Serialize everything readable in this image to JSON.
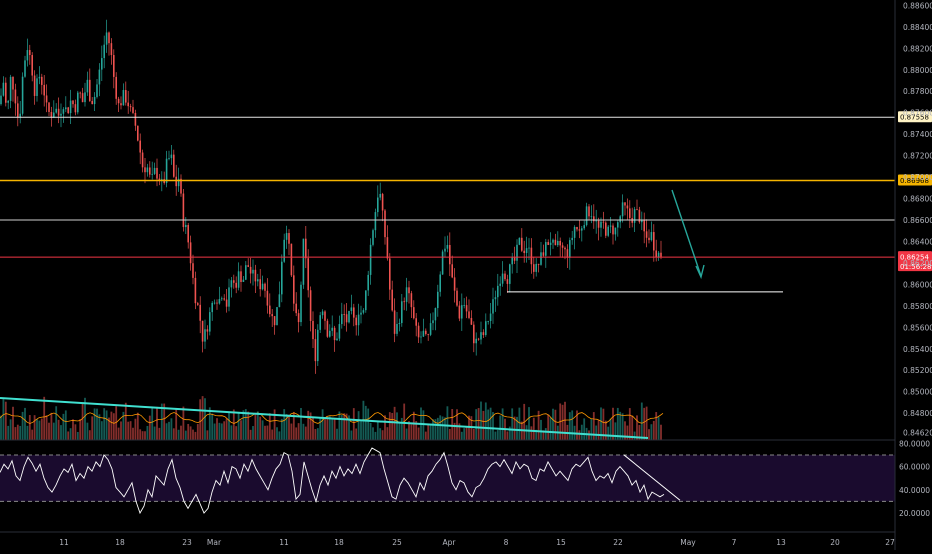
{
  "chart_data": {
    "type": "candlestick",
    "symbol_hidden": true,
    "price_axis": {
      "ylim": [
        0.8455,
        0.8865
      ],
      "ticks": [
        "0.88600",
        "0.88400",
        "0.88200",
        "0.88000",
        "0.87800",
        "0.87600",
        "0.87400",
        "0.87200",
        "0.87000",
        "0.86800",
        "0.86600",
        "0.86400",
        "0.86200",
        "0.86000",
        "0.85800",
        "0.85600",
        "0.85400",
        "0.85200",
        "0.85000",
        "0.84800",
        "0.84620"
      ]
    },
    "time_axis": {
      "labels": [
        "11",
        "18",
        "23",
        "Mar",
        "11",
        "18",
        "25",
        "Apr",
        "8",
        "15",
        "22",
        "May",
        "7",
        "13",
        "20",
        "27"
      ]
    },
    "horizontal_levels": [
      {
        "price": 0.87558,
        "label": "0.87558",
        "color": "#e6e6e6",
        "badge_bg": "#fff3c4",
        "badge_fg": "#000000"
      },
      {
        "price": 0.86968,
        "label": "0.86968",
        "color": "#f5b400",
        "badge_bg": "#f5b400",
        "badge_fg": "#000000"
      },
      {
        "price": 0.866,
        "label": "",
        "color": "#d0d0d0"
      },
      {
        "price": 0.86254,
        "label": "0.86254",
        "sublabel": "01:56:28",
        "color": "#f23645",
        "badge_bg": "#f23645",
        "badge_fg": "#ffffff"
      }
    ],
    "support_segment_price": 0.8593,
    "bull_color": "#26a69a",
    "bear_color": "#ef5350",
    "arrow_color": "#26a69a",
    "trendline_color": "#40e0d0",
    "rsi": {
      "ylim": [
        14,
        82
      ],
      "ticks": [
        "80.0000",
        "60.0000",
        "40.0000",
        "20.0000"
      ],
      "upper_band": 70,
      "lower_band": 30,
      "line_color": "#ffffff",
      "band_fill": "#1a0b2e"
    },
    "price_path": [
      [
        0,
        0.8768
      ],
      [
        3,
        0.8792
      ],
      [
        7,
        0.8758
      ],
      [
        11,
        0.8795
      ],
      [
        15,
        0.8776
      ],
      [
        19,
        0.8748
      ],
      [
        23,
        0.8798
      ],
      [
        27,
        0.8823
      ],
      [
        31,
        0.8808
      ],
      [
        35,
        0.8778
      ],
      [
        39,
        0.8795
      ],
      [
        43,
        0.8786
      ],
      [
        47,
        0.8762
      ],
      [
        51,
        0.8758
      ],
      [
        55,
        0.8765
      ],
      [
        59,
        0.8757
      ],
      [
        63,
        0.877
      ],
      [
        67,
        0.876
      ],
      [
        71,
        0.8772
      ],
      [
        75,
        0.8764
      ],
      [
        79,
        0.878
      ],
      [
        83,
        0.8769
      ],
      [
        87,
        0.879
      ],
      [
        91,
        0.877
      ],
      [
        95,
        0.8776
      ],
      [
        99,
        0.8796
      ],
      [
        103,
        0.8818
      ],
      [
        107,
        0.8836
      ],
      [
        111,
        0.8815
      ],
      [
        115,
        0.8784
      ],
      [
        119,
        0.8765
      ],
      [
        123,
        0.8776
      ],
      [
        127,
        0.8772
      ],
      [
        131,
        0.876
      ],
      [
        135,
        0.875
      ],
      [
        139,
        0.873
      ],
      [
        143,
        0.8708
      ],
      [
        147,
        0.871
      ],
      [
        151,
        0.8695
      ],
      [
        155,
        0.8706
      ],
      [
        159,
        0.87
      ],
      [
        163,
        0.869
      ],
      [
        167,
        0.8714
      ],
      [
        171,
        0.872
      ],
      [
        175,
        0.869
      ],
      [
        179,
        0.87
      ],
      [
        183,
        0.866
      ],
      [
        187,
        0.8648
      ],
      [
        191,
        0.862
      ],
      [
        195,
        0.859
      ],
      [
        199,
        0.8575
      ],
      [
        203,
        0.8548
      ],
      [
        207,
        0.856
      ],
      [
        211,
        0.8578
      ],
      [
        215,
        0.859
      ],
      [
        219,
        0.8585
      ],
      [
        223,
        0.8595
      ],
      [
        227,
        0.858
      ],
      [
        231,
        0.8605
      ],
      [
        235,
        0.8598
      ],
      [
        239,
        0.861
      ],
      [
        243,
        0.8604
      ],
      [
        247,
        0.862
      ],
      [
        251,
        0.861
      ],
      [
        255,
        0.8606
      ],
      [
        259,
        0.8598
      ],
      [
        263,
        0.8603
      ],
      [
        267,
        0.8588
      ],
      [
        271,
        0.857
      ],
      [
        275,
        0.8566
      ],
      [
        279,
        0.8588
      ],
      [
        283,
        0.864
      ],
      [
        287,
        0.8655
      ],
      [
        291,
        0.861
      ],
      [
        295,
        0.857
      ],
      [
        299,
        0.8562
      ],
      [
        303,
        0.864
      ],
      [
        307,
        0.8612
      ],
      [
        311,
        0.856
      ],
      [
        315,
        0.853
      ],
      [
        319,
        0.857
      ],
      [
        323,
        0.858
      ],
      [
        327,
        0.8556
      ],
      [
        331,
        0.856
      ],
      [
        335,
        0.8545
      ],
      [
        339,
        0.856
      ],
      [
        343,
        0.8574
      ],
      [
        347,
        0.8565
      ],
      [
        351,
        0.8574
      ],
      [
        355,
        0.8562
      ],
      [
        359,
        0.8578
      ],
      [
        363,
        0.857
      ],
      [
        367,
        0.8602
      ],
      [
        371,
        0.864
      ],
      [
        375,
        0.8666
      ],
      [
        379,
        0.8692
      ],
      [
        383,
        0.866
      ],
      [
        387,
        0.863
      ],
      [
        391,
        0.858
      ],
      [
        395,
        0.8554
      ],
      [
        399,
        0.8568
      ],
      [
        403,
        0.8585
      ],
      [
        407,
        0.8595
      ],
      [
        411,
        0.858
      ],
      [
        415,
        0.856
      ],
      [
        419,
        0.8548
      ],
      [
        423,
        0.8555
      ],
      [
        427,
        0.8545
      ],
      [
        431,
        0.856
      ],
      [
        435,
        0.8578
      ],
      [
        439,
        0.8604
      ],
      [
        443,
        0.8632
      ],
      [
        447,
        0.864
      ],
      [
        451,
        0.861
      ],
      [
        455,
        0.859
      ],
      [
        459,
        0.857
      ],
      [
        463,
        0.8585
      ],
      [
        467,
        0.8574
      ],
      [
        471,
        0.856
      ],
      [
        475,
        0.8545
      ],
      [
        479,
        0.855
      ],
      [
        483,
        0.8552
      ],
      [
        487,
        0.8565
      ],
      [
        491,
        0.8574
      ],
      [
        495,
        0.859
      ],
      [
        499,
        0.8603
      ],
      [
        503,
        0.8615
      ],
      [
        507,
        0.8605
      ],
      [
        511,
        0.8618
      ],
      [
        515,
        0.8622
      ],
      [
        519,
        0.864
      ],
      [
        523,
        0.8632
      ],
      [
        527,
        0.8636
      ],
      [
        531,
        0.8625
      ],
      [
        535,
        0.8612
      ],
      [
        539,
        0.862
      ],
      [
        543,
        0.863
      ],
      [
        547,
        0.8638
      ],
      [
        551,
        0.8642
      ],
      [
        555,
        0.863
      ],
      [
        559,
        0.8638
      ],
      [
        563,
        0.8632
      ],
      [
        567,
        0.8628
      ],
      [
        571,
        0.864
      ],
      [
        575,
        0.8655
      ],
      [
        579,
        0.8648
      ],
      [
        583,
        0.8658
      ],
      [
        587,
        0.8668
      ],
      [
        591,
        0.8668
      ],
      [
        595,
        0.866
      ],
      [
        599,
        0.865
      ],
      [
        603,
        0.8656
      ],
      [
        607,
        0.8648
      ],
      [
        611,
        0.8652
      ],
      [
        615,
        0.865
      ],
      [
        619,
        0.866
      ],
      [
        623,
        0.8672
      ],
      [
        627,
        0.8668
      ],
      [
        631,
        0.866
      ],
      [
        635,
        0.8668
      ],
      [
        639,
        0.8664
      ],
      [
        643,
        0.865
      ],
      [
        647,
        0.8642
      ],
      [
        651,
        0.8648
      ],
      [
        655,
        0.8632
      ],
      [
        659,
        0.8628
      ],
      [
        663,
        0.8628
      ]
    ],
    "rsi_path": [
      [
        0,
        55
      ],
      [
        4,
        62
      ],
      [
        8,
        58
      ],
      [
        12,
        65
      ],
      [
        16,
        52
      ],
      [
        20,
        48
      ],
      [
        24,
        60
      ],
      [
        28,
        68
      ],
      [
        32,
        63
      ],
      [
        36,
        56
      ],
      [
        40,
        62
      ],
      [
        44,
        50
      ],
      [
        48,
        42
      ],
      [
        52,
        38
      ],
      [
        56,
        44
      ],
      [
        60,
        52
      ],
      [
        64,
        58
      ],
      [
        68,
        55
      ],
      [
        72,
        62
      ],
      [
        76,
        48
      ],
      [
        80,
        54
      ],
      [
        84,
        50
      ],
      [
        88,
        60
      ],
      [
        92,
        56
      ],
      [
        96,
        64
      ],
      [
        100,
        60
      ],
      [
        104,
        70
      ],
      [
        108,
        66
      ],
      [
        112,
        58
      ],
      [
        116,
        42
      ],
      [
        120,
        38
      ],
      [
        124,
        34
      ],
      [
        128,
        40
      ],
      [
        132,
        46
      ],
      [
        136,
        30
      ],
      [
        140,
        20
      ],
      [
        144,
        26
      ],
      [
        148,
        40
      ],
      [
        152,
        34
      ],
      [
        156,
        52
      ],
      [
        160,
        48
      ],
      [
        164,
        44
      ],
      [
        168,
        58
      ],
      [
        172,
        66
      ],
      [
        176,
        50
      ],
      [
        180,
        42
      ],
      [
        184,
        30
      ],
      [
        188,
        24
      ],
      [
        192,
        30
      ],
      [
        196,
        36
      ],
      [
        200,
        28
      ],
      [
        204,
        20
      ],
      [
        208,
        24
      ],
      [
        212,
        38
      ],
      [
        216,
        48
      ],
      [
        220,
        44
      ],
      [
        224,
        56
      ],
      [
        228,
        46
      ],
      [
        232,
        60
      ],
      [
        236,
        58
      ],
      [
        240,
        50
      ],
      [
        244,
        62
      ],
      [
        248,
        56
      ],
      [
        252,
        66
      ],
      [
        256,
        58
      ],
      [
        260,
        52
      ],
      [
        264,
        46
      ],
      [
        268,
        40
      ],
      [
        272,
        50
      ],
      [
        276,
        58
      ],
      [
        280,
        62
      ],
      [
        284,
        72
      ],
      [
        288,
        70
      ],
      [
        292,
        56
      ],
      [
        296,
        32
      ],
      [
        300,
        36
      ],
      [
        304,
        64
      ],
      [
        308,
        52
      ],
      [
        312,
        40
      ],
      [
        316,
        30
      ],
      [
        320,
        44
      ],
      [
        324,
        52
      ],
      [
        328,
        44
      ],
      [
        332,
        56
      ],
      [
        336,
        50
      ],
      [
        340,
        60
      ],
      [
        344,
        52
      ],
      [
        348,
        58
      ],
      [
        352,
        54
      ],
      [
        356,
        62
      ],
      [
        360,
        54
      ],
      [
        364,
        64
      ],
      [
        368,
        70
      ],
      [
        372,
        76
      ],
      [
        376,
        74
      ],
      [
        380,
        72
      ],
      [
        384,
        58
      ],
      [
        388,
        46
      ],
      [
        392,
        34
      ],
      [
        396,
        32
      ],
      [
        400,
        44
      ],
      [
        404,
        50
      ],
      [
        408,
        46
      ],
      [
        412,
        40
      ],
      [
        416,
        34
      ],
      [
        420,
        46
      ],
      [
        424,
        40
      ],
      [
        428,
        52
      ],
      [
        432,
        56
      ],
      [
        436,
        62
      ],
      [
        440,
        66
      ],
      [
        444,
        72
      ],
      [
        448,
        60
      ],
      [
        452,
        46
      ],
      [
        456,
        40
      ],
      [
        460,
        48
      ],
      [
        464,
        46
      ],
      [
        468,
        38
      ],
      [
        472,
        34
      ],
      [
        476,
        42
      ],
      [
        480,
        44
      ],
      [
        484,
        50
      ],
      [
        488,
        58
      ],
      [
        492,
        62
      ],
      [
        496,
        64
      ],
      [
        500,
        60
      ],
      [
        504,
        66
      ],
      [
        508,
        60
      ],
      [
        512,
        54
      ],
      [
        516,
        64
      ],
      [
        520,
        58
      ],
      [
        524,
        62
      ],
      [
        528,
        60
      ],
      [
        532,
        50
      ],
      [
        536,
        48
      ],
      [
        540,
        58
      ],
      [
        544,
        56
      ],
      [
        548,
        64
      ],
      [
        552,
        58
      ],
      [
        556,
        52
      ],
      [
        560,
        56
      ],
      [
        564,
        52
      ],
      [
        568,
        48
      ],
      [
        572,
        58
      ],
      [
        576,
        62
      ],
      [
        580,
        60
      ],
      [
        584,
        64
      ],
      [
        588,
        68
      ],
      [
        592,
        56
      ],
      [
        596,
        48
      ],
      [
        600,
        52
      ],
      [
        604,
        50
      ],
      [
        608,
        54
      ],
      [
        612,
        46
      ],
      [
        616,
        56
      ],
      [
        620,
        60
      ],
      [
        624,
        56
      ],
      [
        628,
        52
      ],
      [
        632,
        44
      ],
      [
        636,
        48
      ],
      [
        640,
        38
      ],
      [
        644,
        44
      ],
      [
        648,
        32
      ],
      [
        652,
        38
      ],
      [
        656,
        36
      ],
      [
        660,
        34
      ],
      [
        664,
        36
      ]
    ]
  }
}
